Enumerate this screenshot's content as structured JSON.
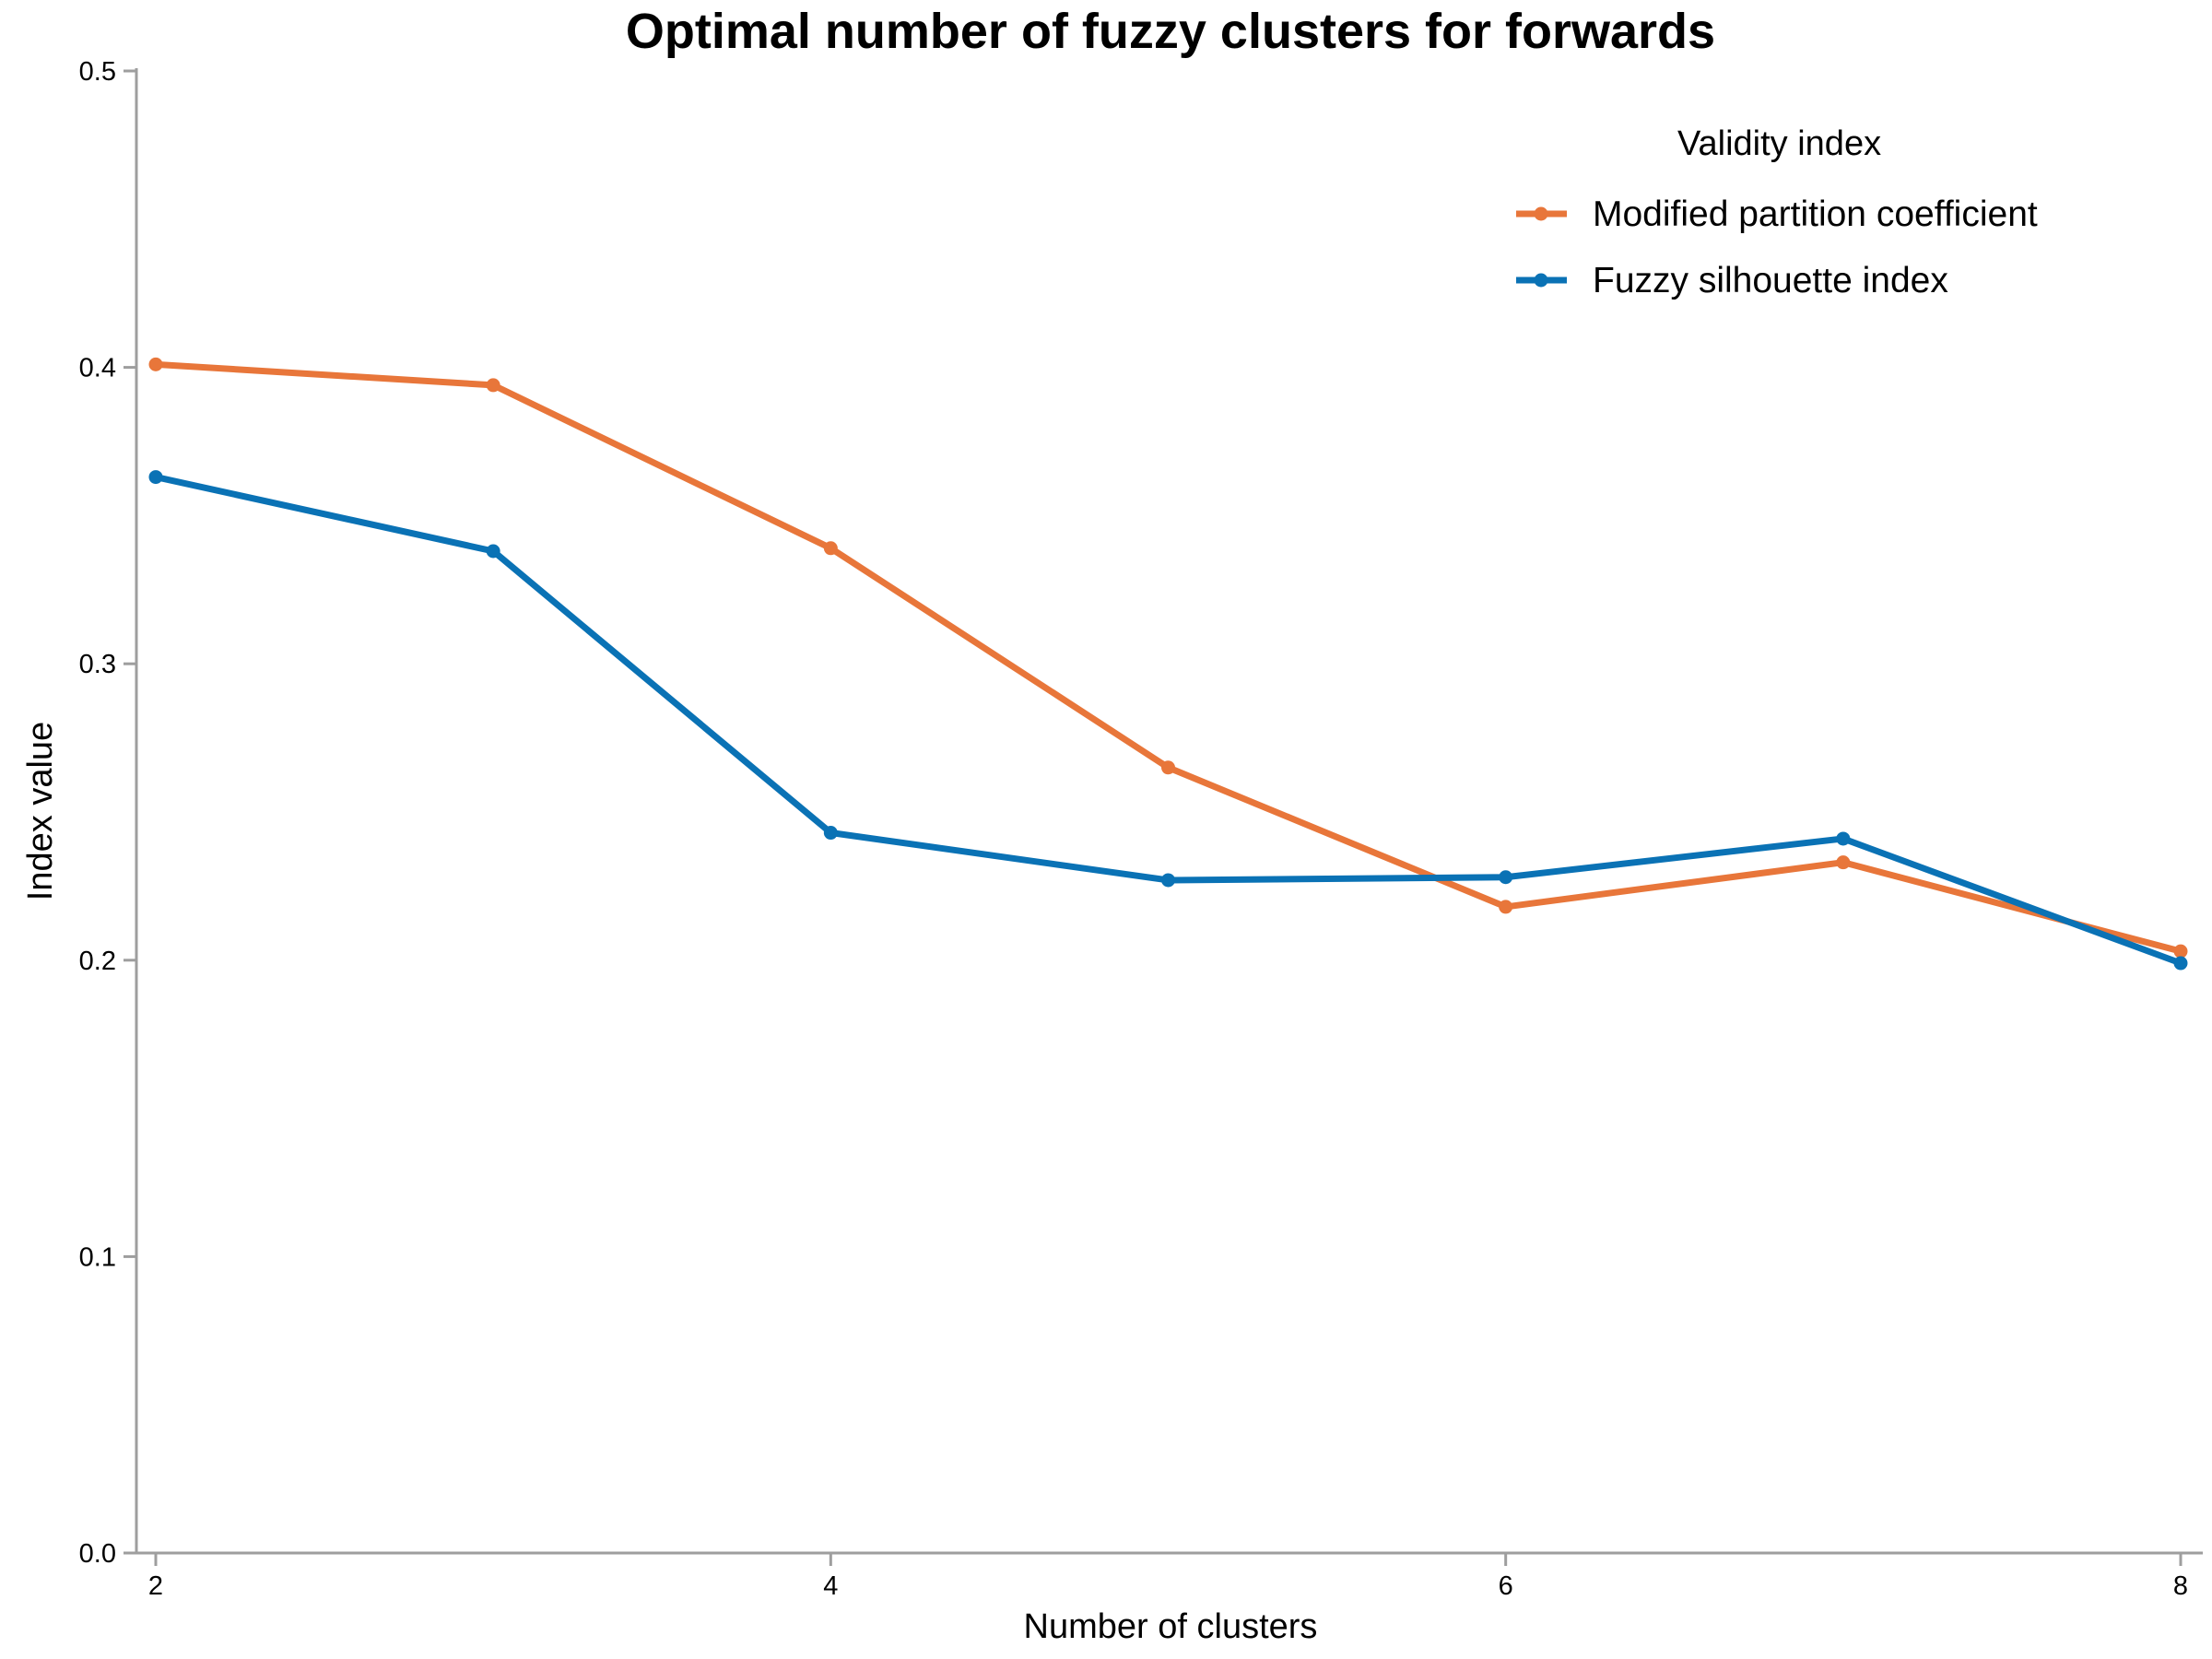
{
  "chart_data": {
    "type": "line",
    "title": "Optimal number of fuzzy clusters for forwards",
    "xlabel": "Number of clusters",
    "ylabel": "Index value",
    "x": [
      2,
      3,
      4,
      5,
      6,
      7,
      8
    ],
    "xlim": [
      2,
      8
    ],
    "ylim": [
      0,
      0.5
    ],
    "xticks": [
      2,
      4,
      6,
      8
    ],
    "yticks": [
      0.0,
      0.1,
      0.2,
      0.3,
      0.4,
      0.5
    ],
    "xtick_labels": [
      "2",
      "4",
      "6",
      "8"
    ],
    "ytick_labels": [
      "0.0",
      "0.1",
      "0.2",
      "0.3",
      "0.4",
      "0.5"
    ],
    "grid": false,
    "legend": {
      "title": "Validity index",
      "position": "top-right"
    },
    "series": [
      {
        "name": "Modified partition coefficient",
        "color": "#E8763A",
        "values": [
          0.401,
          0.394,
          0.339,
          0.265,
          0.218,
          0.233,
          0.203
        ]
      },
      {
        "name": "Fuzzy silhouette index",
        "color": "#0A72B5",
        "values": [
          0.363,
          0.338,
          0.243,
          0.227,
          0.228,
          0.241,
          0.199
        ]
      }
    ]
  }
}
